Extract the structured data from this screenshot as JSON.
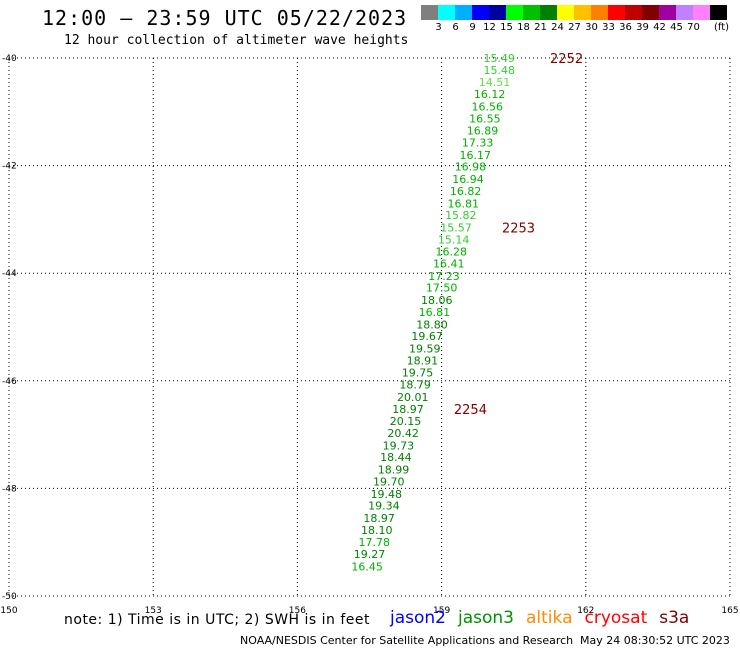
{
  "header": {
    "title": "12:00 – 23:59 UTC 05/22/2023",
    "subtitle": "12 hour collection of altimeter wave heights"
  },
  "legend": {
    "colors": [
      "#7f7f7f",
      "#00ffff",
      "#00b0ff",
      "#0000ff",
      "#0000a0",
      "#00ff00",
      "#00c000",
      "#008000",
      "#ffff00",
      "#ffc000",
      "#ff8000",
      "#ff0000",
      "#c00000",
      "#800000",
      "#a000a0",
      "#c080ff",
      "#ff80ff",
      "#000000"
    ],
    "labels": [
      "3",
      "6",
      "9",
      "12",
      "15",
      "18",
      "21",
      "24",
      "27",
      "30",
      "33",
      "36",
      "39",
      "42",
      "45",
      "70"
    ],
    "unit": "(ft)"
  },
  "footer": {
    "note": "note: 1) Time is in UTC; 2) SWH is in feet",
    "satellites": [
      {
        "name": "jason2",
        "color": "#0000ff"
      },
      {
        "name": "jason3",
        "color": "#009000"
      },
      {
        "name": "altika",
        "color": "#ff8c00"
      },
      {
        "name": "cryosat",
        "color": "#ff0000"
      },
      {
        "name": "s3a",
        "color": "#800000"
      }
    ],
    "credit": "NOAA/NESDIS Center for Satellite Applications and Research",
    "timestamp": "May 24 08:30:52 UTC 2023"
  },
  "chart_data": {
    "type": "scatter",
    "xlim": [
      150,
      165
    ],
    "ylim": [
      -50,
      -40
    ],
    "x_ticks": [
      150,
      153,
      156,
      159,
      162,
      165
    ],
    "y_ticks": [
      -40,
      -42,
      -44,
      -46,
      -48,
      -50
    ],
    "x_tick_labels": [
      "150",
      "153",
      "156",
      "159",
      "162",
      "165"
    ],
    "y_tick_labels": [
      "-40",
      "-42",
      "-44",
      "-46",
      "-48",
      "-50"
    ],
    "grid": true,
    "series": [
      {
        "satellite": "jason3",
        "points": [
          {
            "lon": 160.2,
            "lat": -40.0,
            "swh": "15.49",
            "color": "#33cc33"
          },
          {
            "lon": 160.2,
            "lat": -40.22,
            "swh": "15.48",
            "color": "#33cc33"
          },
          {
            "lon": 160.1,
            "lat": -40.45,
            "swh": "14.51",
            "color": "#66dd44"
          },
          {
            "lon": 160.0,
            "lat": -40.67,
            "swh": "16.12",
            "color": "#00b000"
          },
          {
            "lon": 159.95,
            "lat": -40.9,
            "swh": "16.56",
            "color": "#00b000"
          },
          {
            "lon": 159.9,
            "lat": -41.12,
            "swh": "16.55",
            "color": "#00b000"
          },
          {
            "lon": 159.85,
            "lat": -41.35,
            "swh": "16.89",
            "color": "#00b000"
          },
          {
            "lon": 159.75,
            "lat": -41.57,
            "swh": "17.33",
            "color": "#00b000"
          },
          {
            "lon": 159.7,
            "lat": -41.8,
            "swh": "16.17",
            "color": "#00b000"
          },
          {
            "lon": 159.6,
            "lat": -42.02,
            "swh": "16.98",
            "color": "#00b000"
          },
          {
            "lon": 159.55,
            "lat": -42.25,
            "swh": "16.94",
            "color": "#00b000"
          },
          {
            "lon": 159.5,
            "lat": -42.47,
            "swh": "16.82",
            "color": "#00b000"
          },
          {
            "lon": 159.45,
            "lat": -42.7,
            "swh": "16.81",
            "color": "#00b000"
          },
          {
            "lon": 159.4,
            "lat": -42.92,
            "swh": "15.82",
            "color": "#33cc33"
          },
          {
            "lon": 159.3,
            "lat": -43.15,
            "swh": "15.57",
            "color": "#33cc33"
          },
          {
            "lon": 159.25,
            "lat": -43.37,
            "swh": "15.14",
            "color": "#33cc33"
          },
          {
            "lon": 159.2,
            "lat": -43.6,
            "swh": "16.28",
            "color": "#00b000"
          },
          {
            "lon": 159.15,
            "lat": -43.82,
            "swh": "16.41",
            "color": "#00b000"
          },
          {
            "lon": 159.05,
            "lat": -44.05,
            "swh": "17.23",
            "color": "#00b000"
          },
          {
            "lon": 159.0,
            "lat": -44.27,
            "swh": "17.50",
            "color": "#00b000"
          },
          {
            "lon": 158.9,
            "lat": -44.5,
            "swh": "18.06",
            "color": "#008000"
          },
          {
            "lon": 158.85,
            "lat": -44.72,
            "swh": "16.81",
            "color": "#00b000"
          },
          {
            "lon": 158.8,
            "lat": -44.95,
            "swh": "18.80",
            "color": "#008000"
          },
          {
            "lon": 158.7,
            "lat": -45.17,
            "swh": "19.67",
            "color": "#008000"
          },
          {
            "lon": 158.65,
            "lat": -45.4,
            "swh": "19.59",
            "color": "#008000"
          },
          {
            "lon": 158.6,
            "lat": -45.62,
            "swh": "18.91",
            "color": "#008000"
          },
          {
            "lon": 158.5,
            "lat": -45.85,
            "swh": "19.75",
            "color": "#008000"
          },
          {
            "lon": 158.45,
            "lat": -46.07,
            "swh": "18.79",
            "color": "#008000"
          },
          {
            "lon": 158.4,
            "lat": -46.3,
            "swh": "20.01",
            "color": "#008000"
          },
          {
            "lon": 158.3,
            "lat": -46.52,
            "swh": "18.97",
            "color": "#008000"
          },
          {
            "lon": 158.25,
            "lat": -46.75,
            "swh": "20.15",
            "color": "#008000"
          },
          {
            "lon": 158.2,
            "lat": -46.97,
            "swh": "20.42",
            "color": "#008000"
          },
          {
            "lon": 158.1,
            "lat": -47.2,
            "swh": "19.73",
            "color": "#008000"
          },
          {
            "lon": 158.05,
            "lat": -47.42,
            "swh": "18.44",
            "color": "#008000"
          },
          {
            "lon": 158.0,
            "lat": -47.65,
            "swh": "18.99",
            "color": "#008000"
          },
          {
            "lon": 157.9,
            "lat": -47.87,
            "swh": "19.70",
            "color": "#008000"
          },
          {
            "lon": 157.85,
            "lat": -48.1,
            "swh": "19.48",
            "color": "#008000"
          },
          {
            "lon": 157.8,
            "lat": -48.32,
            "swh": "19.34",
            "color": "#008000"
          },
          {
            "lon": 157.7,
            "lat": -48.55,
            "swh": "18.97",
            "color": "#008000"
          },
          {
            "lon": 157.65,
            "lat": -48.77,
            "swh": "18.10",
            "color": "#008000"
          },
          {
            "lon": 157.6,
            "lat": -49.0,
            "swh": "17.78",
            "color": "#00b000"
          },
          {
            "lon": 157.5,
            "lat": -49.22,
            "swh": "19.27",
            "color": "#008000"
          },
          {
            "lon": 157.45,
            "lat": -49.45,
            "swh": "16.45",
            "color": "#00b000"
          }
        ]
      }
    ],
    "time_labels": [
      {
        "lon": 161.6,
        "lat": -40.0,
        "text": "2252",
        "color": "#800000"
      },
      {
        "lon": 160.6,
        "lat": -43.15,
        "text": "2253",
        "color": "#800000"
      },
      {
        "lon": 159.6,
        "lat": -46.52,
        "text": "2254",
        "color": "#800000"
      }
    ]
  }
}
